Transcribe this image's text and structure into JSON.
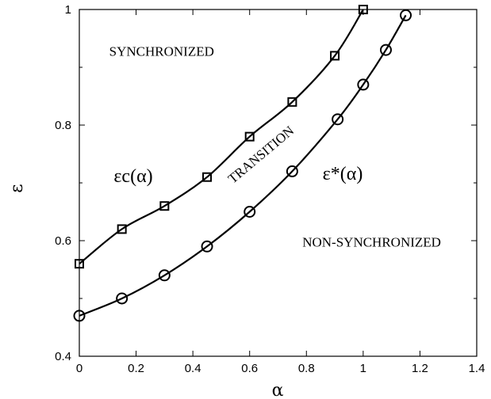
{
  "chart_data": {
    "type": "scatter",
    "xlabel": "α",
    "ylabel": "ε",
    "xlim": [
      0,
      1.4
    ],
    "ylim": [
      0.4,
      1.0
    ],
    "x_ticks": [
      0,
      0.2,
      0.4,
      0.6,
      0.8,
      1,
      1.2,
      1.4
    ],
    "x_tick_labels": [
      "0",
      "0.2",
      "0.4",
      "0.6",
      "0.8",
      "1",
      "1.2",
      "1.4"
    ],
    "y_ticks": [
      0.4,
      0.6,
      0.8,
      1.0
    ],
    "y_tick_labels": [
      "0.4",
      "0.6",
      "0.8",
      "1"
    ],
    "grid": false,
    "series": [
      {
        "name": "εc(α)",
        "marker": "square",
        "x": [
          0,
          0.15,
          0.3,
          0.45,
          0.6,
          0.75,
          0.9,
          1.0
        ],
        "y": [
          0.56,
          0.62,
          0.66,
          0.71,
          0.78,
          0.84,
          0.92,
          1.0
        ]
      },
      {
        "name": "ε*(α)",
        "marker": "circle",
        "x": [
          0,
          0.15,
          0.3,
          0.45,
          0.6,
          0.75,
          0.91,
          1.0,
          1.08,
          1.15
        ],
        "y": [
          0.47,
          0.5,
          0.54,
          0.59,
          0.65,
          0.72,
          0.81,
          0.87,
          0.93,
          0.99
        ]
      }
    ],
    "annotations": [
      {
        "text": "SYNCHRONIZED",
        "x": 0.29,
        "y": 0.92
      },
      {
        "text": "TRANSITION",
        "x": 0.65,
        "y": 0.743,
        "rotate": -40
      },
      {
        "text": "NON-SYNCHRONIZED",
        "x": 1.03,
        "y": 0.59
      }
    ]
  }
}
